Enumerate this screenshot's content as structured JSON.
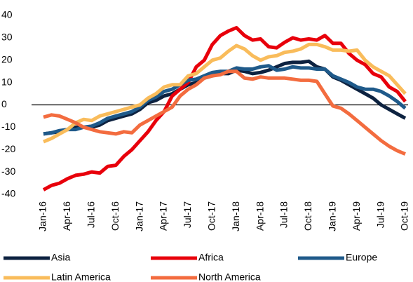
{
  "chart_data": {
    "type": "line",
    "categories": [
      "Jan-16",
      null,
      null,
      "Apr-16",
      null,
      null,
      "Jul-16",
      null,
      null,
      "Oct-16",
      null,
      null,
      "Jan-17",
      null,
      null,
      "Apr-17",
      null,
      null,
      "Jul-17",
      null,
      null,
      "Oct-17",
      null,
      null,
      "Jan-18",
      null,
      null,
      "Apr-18",
      null,
      null,
      "Jul-18",
      null,
      null,
      "Oct-18",
      null,
      null,
      "Jan-19",
      null,
      null,
      "Apr-19",
      null,
      null,
      "Jul-19",
      null,
      null,
      "Oct-19"
    ],
    "ylim": [
      -40,
      40
    ],
    "yticks": [
      -40,
      -30,
      -20,
      -10,
      0,
      10,
      20,
      30,
      40
    ],
    "grid": false,
    "series": [
      {
        "name": "Asia",
        "color": "#0d2240",
        "values": [
          -13,
          -12.5,
          -12,
          -11,
          -10,
          -10,
          -10,
          -9,
          -7,
          -6,
          -5,
          -4,
          -2,
          1,
          2,
          4,
          5,
          7,
          9,
          10,
          12,
          13,
          14,
          14,
          15.5,
          15,
          14,
          14.5,
          15.5,
          17,
          18.5,
          19,
          19,
          19.5,
          17,
          16,
          12.5,
          11,
          9,
          7,
          5,
          3,
          0,
          -2,
          -4,
          -6
        ]
      },
      {
        "name": "Africa",
        "color": "#e8000b",
        "values": [
          -38,
          -36,
          -35,
          -33,
          -31.5,
          -31,
          -30,
          -30.5,
          -27.5,
          -27,
          -23,
          -20,
          -16,
          -12,
          -7,
          -3,
          4,
          7,
          10,
          17,
          20,
          27,
          31,
          33,
          34.5,
          31,
          29,
          29.5,
          26,
          25.5,
          28,
          30,
          29,
          29.5,
          29,
          31,
          27.5,
          27.5,
          23,
          20,
          18,
          14,
          12.5,
          8,
          6,
          1.5
        ]
      },
      {
        "name": "Europe",
        "color": "#1f5a8a",
        "values": [
          -13,
          -12.5,
          -11.5,
          -11,
          -11,
          -10,
          -9.5,
          -8,
          -6,
          -5,
          -4,
          -3,
          -1,
          2,
          3.5,
          6,
          7,
          9,
          11,
          11.5,
          13,
          14.5,
          15,
          15,
          16.5,
          16,
          16,
          17,
          17.5,
          15.5,
          16,
          17,
          16.5,
          16.5,
          16,
          16,
          13,
          11.5,
          10,
          8,
          7,
          7,
          6,
          4,
          1.5,
          -1.5
        ]
      },
      {
        "name": "Latin America",
        "color": "#f9bc5b",
        "values": [
          -16.5,
          -15,
          -13,
          -11,
          -8,
          -6.5,
          -7,
          -5,
          -4,
          -3,
          -2,
          -1,
          0,
          3,
          5,
          8,
          9,
          9,
          13,
          14,
          17,
          20,
          21,
          24,
          26.5,
          25,
          22,
          20,
          21.5,
          22,
          23.5,
          24,
          25,
          27,
          27,
          26,
          24.5,
          24.5,
          24,
          24.5,
          20,
          17,
          15,
          13,
          9,
          5
        ]
      },
      {
        "name": "North America",
        "color": "#f36c3f",
        "values": [
          -5.5,
          -4.5,
          -5,
          -6.5,
          -8,
          -10,
          -11,
          -12,
          -12.5,
          -13,
          -12,
          -12.5,
          -9,
          -7,
          -5,
          -3,
          -1,
          4,
          7,
          9,
          12,
          13,
          13.5,
          15,
          15,
          12,
          11.5,
          12.5,
          12,
          12,
          12,
          11.5,
          11,
          11,
          10.5,
          5,
          -0.5,
          -1.5,
          -4,
          -7,
          -10,
          -13,
          -16,
          -18.5,
          -20.5,
          -22
        ]
      }
    ]
  }
}
